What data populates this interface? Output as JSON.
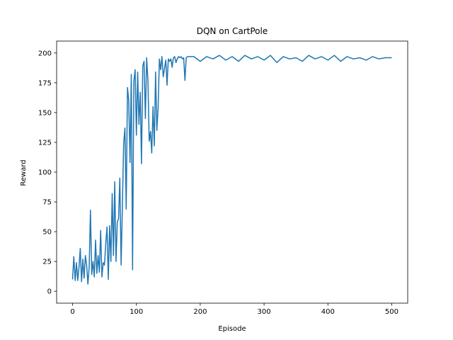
{
  "chart_data": {
    "type": "line",
    "title": "DQN on CartPole",
    "xlabel": "Episode",
    "ylabel": "Reward",
    "xlim": [
      -25,
      525
    ],
    "ylim": [
      -10,
      210
    ],
    "x_ticks": [
      0,
      100,
      200,
      300,
      400,
      500
    ],
    "y_ticks": [
      0,
      25,
      50,
      75,
      100,
      125,
      150,
      175,
      200
    ],
    "grid": false,
    "line_color": "#1f77b4",
    "series": [
      {
        "x": [
          0,
          2,
          4,
          6,
          8,
          10,
          12,
          14,
          16,
          18,
          20,
          22,
          24,
          26,
          28,
          30,
          32,
          34,
          36,
          38,
          40,
          42,
          44,
          46,
          48,
          50,
          52,
          54,
          56,
          58,
          60,
          62,
          64,
          66,
          68,
          70,
          72,
          74,
          76,
          78,
          80,
          82,
          84,
          86,
          88,
          90,
          92,
          94,
          96,
          98,
          100,
          102,
          104,
          106,
          108,
          110,
          112,
          114,
          116,
          118,
          120,
          122,
          124,
          126,
          128,
          130,
          132,
          134,
          136,
          138,
          140,
          142,
          144,
          146,
          148,
          150,
          152,
          154,
          156,
          158,
          160,
          162,
          164,
          166,
          168,
          170,
          172,
          174,
          176,
          178,
          180,
          190,
          200,
          210,
          220,
          230,
          240,
          250,
          260,
          270,
          280,
          290,
          300,
          310,
          320,
          330,
          340,
          350,
          360,
          370,
          380,
          390,
          400,
          410,
          420,
          430,
          440,
          450,
          460,
          470,
          480,
          490,
          500
        ],
        "y": [
          10,
          29,
          9,
          24,
          9,
          20,
          36,
          8,
          27,
          11,
          30,
          22,
          6,
          20,
          68,
          14,
          25,
          12,
          43,
          15,
          30,
          16,
          51,
          12,
          24,
          22,
          40,
          54,
          10,
          55,
          25,
          82,
          30,
          92,
          25,
          58,
          61,
          95,
          22,
          71,
          124,
          137,
          69,
          171,
          160,
          108,
          182,
          18,
          176,
          186,
          131,
          184,
          140,
          167,
          107,
          189,
          193,
          145,
          196,
          177,
          126,
          134,
          116,
          155,
          122,
          184,
          135,
          154,
          195,
          186,
          197,
          180,
          187,
          194,
          173,
          195,
          193,
          195,
          188,
          196,
          197,
          192,
          195,
          197,
          196,
          197,
          195,
          196,
          177,
          196,
          197,
          197,
          193,
          197,
          195,
          198,
          194,
          197,
          193,
          198,
          195,
          197,
          194,
          198,
          192,
          197,
          195,
          196,
          193,
          198,
          195,
          197,
          194,
          198,
          193,
          197,
          195,
          196,
          194,
          197,
          195,
          196,
          196
        ]
      }
    ]
  }
}
